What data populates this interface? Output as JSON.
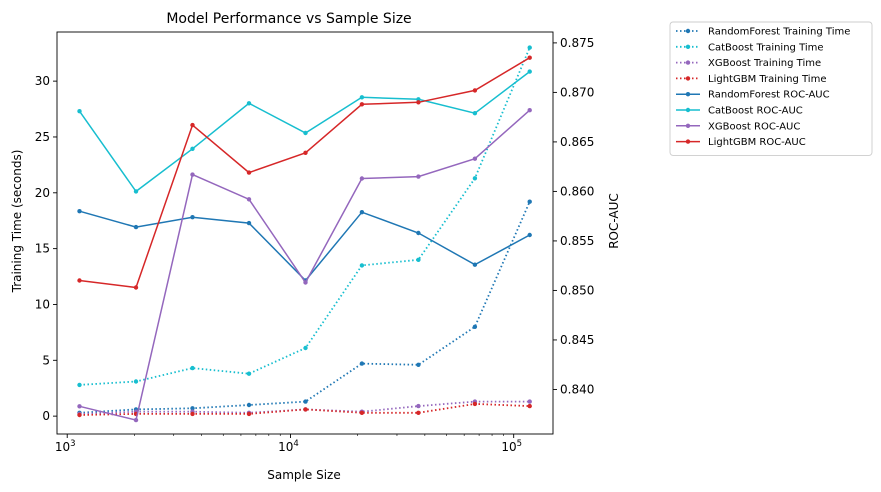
{
  "chart_data": {
    "type": "line",
    "title": "Model Performance vs Sample Size",
    "xlabel": "Sample Size",
    "ylabel_left": "Training Time (seconds)",
    "ylabel_right": "ROC-AUC",
    "x_scale": "log",
    "xlim": [
      900,
      150000
    ],
    "ylim_left": [
      -1.6,
      34.4
    ],
    "ylim_right": [
      0.8355,
      0.8761
    ],
    "x_ticks": [
      {
        "value": 1000,
        "base": "10",
        "exp": "3"
      },
      {
        "value": 10000,
        "base": "10",
        "exp": "4"
      },
      {
        "value": 100000,
        "base": "10",
        "exp": "5"
      }
    ],
    "y_ticks_left": [
      "0",
      "5",
      "10",
      "15",
      "20",
      "25",
      "30"
    ],
    "y_ticks_right": [
      "0.840",
      "0.845",
      "0.850",
      "0.855",
      "0.860",
      "0.865",
      "0.870",
      "0.875"
    ],
    "grid": false,
    "legend_position": "outside-top-right",
    "x": [
      1135,
      2032,
      3640,
      6519,
      11674,
      20906,
      37439,
      67044,
      118000
    ],
    "series": [
      {
        "name": "RandomForest Training Time",
        "axis": "left",
        "style": "dotted",
        "color": "#1f77b4",
        "values": [
          0.3,
          0.6,
          0.7,
          1.0,
          1.3,
          4.7,
          4.6,
          8.0,
          19.2
        ]
      },
      {
        "name": "CatBoost Training Time",
        "axis": "left",
        "style": "dotted",
        "color": "#17becf",
        "values": [
          2.8,
          3.1,
          4.3,
          3.8,
          6.1,
          13.5,
          14.0,
          21.3,
          33.0
        ]
      },
      {
        "name": "XGBoost Training Time",
        "axis": "left",
        "style": "dotted",
        "color": "#9467bd",
        "values": [
          0.2,
          0.4,
          0.4,
          0.3,
          0.6,
          0.4,
          0.9,
          1.3,
          1.3
        ]
      },
      {
        "name": "LightGBM Training Time",
        "axis": "left",
        "style": "dotted",
        "color": "#d62728",
        "values": [
          0.1,
          0.2,
          0.2,
          0.2,
          0.6,
          0.3,
          0.3,
          1.1,
          0.9
        ]
      },
      {
        "name": "RandomForest ROC-AUC",
        "axis": "right",
        "style": "solid",
        "color": "#1f77b4",
        "values": [
          0.858,
          0.8564,
          0.8574,
          0.8568,
          0.851,
          0.8579,
          0.8558,
          0.8526,
          0.8556
        ]
      },
      {
        "name": "CatBoost ROC-AUC",
        "axis": "right",
        "style": "solid",
        "color": "#17becf",
        "values": [
          0.8681,
          0.86,
          0.8643,
          0.8689,
          0.8659,
          0.8695,
          0.8693,
          0.8679,
          0.8721
        ]
      },
      {
        "name": "XGBoost ROC-AUC",
        "axis": "right",
        "style": "solid",
        "color": "#9467bd",
        "values": [
          0.8383,
          0.8369,
          0.8617,
          0.8592,
          0.8508,
          0.8613,
          0.8615,
          0.8633,
          0.8682
        ]
      },
      {
        "name": "LightGBM ROC-AUC",
        "axis": "right",
        "style": "solid",
        "color": "#d62728",
        "values": [
          0.851,
          0.8503,
          0.8667,
          0.8619,
          0.8639,
          0.8688,
          0.869,
          0.8702,
          0.8735
        ]
      }
    ]
  }
}
